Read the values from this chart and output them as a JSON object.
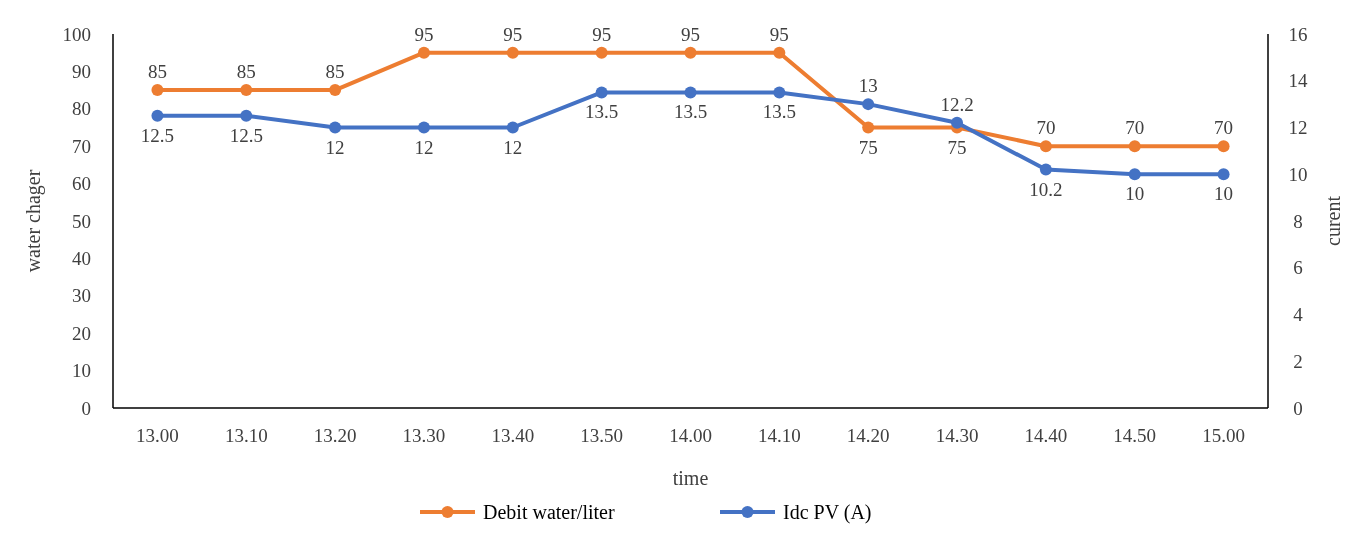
{
  "chart_data": {
    "type": "line",
    "xlabel": "time",
    "ylabel": "water chager",
    "y2label": "curent",
    "categories": [
      "13.00",
      "13.10",
      "13.20",
      "13.30",
      "13.40",
      "13.50",
      "14.00",
      "14.10",
      "14.20",
      "14.30",
      "14.40",
      "14.50",
      "15.00"
    ],
    "series": [
      {
        "name": "Debit water/liter",
        "color": "#ed7d31",
        "values": [
          85,
          85,
          85,
          95,
          95,
          95,
          95,
          95,
          75,
          75,
          70,
          70,
          70
        ]
      },
      {
        "name": "Idc PV (A)",
        "color": "#4472c4",
        "axis": "y2",
        "values": [
          12.5,
          12.5,
          12,
          12,
          12,
          13.5,
          13.5,
          13.5,
          13,
          12.2,
          10.2,
          10,
          10
        ]
      }
    ],
    "ylim": [
      0,
      100
    ],
    "yticks": [
      0,
      10,
      20,
      30,
      40,
      50,
      60,
      70,
      80,
      90,
      100
    ],
    "y2lim": [
      0,
      16
    ],
    "y2ticks": [
      0,
      2,
      4,
      6,
      8,
      10,
      12,
      14,
      16
    ],
    "data_labels": true,
    "legend": "bottom",
    "marker": "circle",
    "line_style": "solid",
    "grid": false
  }
}
